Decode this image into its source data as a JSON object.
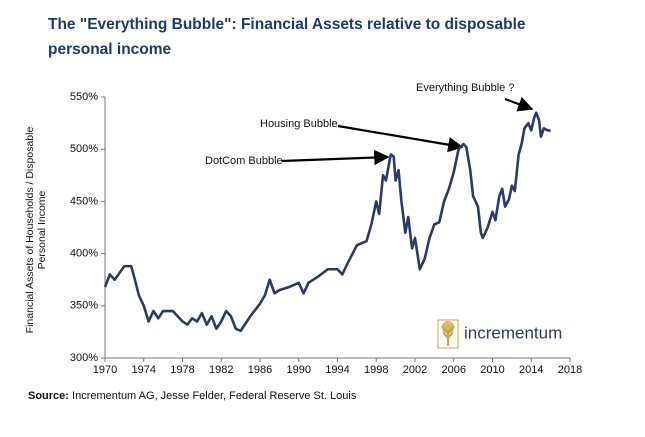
{
  "chart_data": {
    "type": "line",
    "title": "The \"Everything Bubble\": Financial Assets relative to disposable personal income",
    "y_label": "Financial Assets of Households / Disposable Personal Income",
    "source_label": "Source:",
    "source": "Incrementum AG, Jesse Felder, Federal Reserve St. Louis",
    "logo_text": "incrementum",
    "annotations": [
      "DotCom Bubble",
      "Housing Bubble",
      "Everything Bubble ?"
    ],
    "color": "#2b3a66",
    "x": [
      1970,
      1970.5,
      1971,
      1972,
      1972.7,
      1973,
      1973.5,
      1974,
      1974.5,
      1975,
      1975.5,
      1976,
      1977,
      1977.5,
      1978,
      1978.5,
      1979,
      1979.5,
      1980,
      1980.5,
      1981,
      1981.5,
      1982,
      1982.5,
      1983,
      1983.5,
      1984,
      1985,
      1986,
      1986.5,
      1987,
      1987.5,
      1988,
      1989,
      1990,
      1990.5,
      1991,
      1992,
      1993,
      1994,
      1994.5,
      1995,
      1996,
      1997,
      1997.5,
      1998,
      1998.3,
      1998.7,
      1999,
      1999.5,
      1999.8,
      2000,
      2000.3,
      2000.6,
      2001,
      2001.3,
      2001.7,
      2002,
      2002.5,
      2003,
      2003.5,
      2004,
      2004.5,
      2005,
      2005.5,
      2006,
      2006.5,
      2007,
      2007.3,
      2007.7,
      2008,
      2008.5,
      2008.8,
      2009,
      2009.5,
      2010,
      2010.3,
      2010.7,
      2011,
      2011.3,
      2011.7,
      2012,
      2012.3,
      2012.7,
      2013,
      2013.3,
      2013.7,
      2014,
      2014.3,
      2014.5,
      2014.8,
      2015,
      2015.3,
      2015.7,
      2016
    ],
    "values": [
      368,
      380,
      375,
      388,
      388,
      378,
      360,
      350,
      335,
      345,
      338,
      345,
      345,
      340,
      335,
      332,
      338,
      335,
      343,
      332,
      340,
      328,
      335,
      345,
      340,
      328,
      326,
      340,
      352,
      360,
      375,
      362,
      365,
      368,
      372,
      362,
      372,
      378,
      385,
      385,
      380,
      390,
      408,
      412,
      428,
      450,
      438,
      475,
      470,
      495,
      493,
      470,
      480,
      450,
      420,
      435,
      405,
      415,
      385,
      395,
      415,
      428,
      430,
      450,
      462,
      478,
      500,
      505,
      502,
      480,
      455,
      445,
      420,
      415,
      425,
      440,
      432,
      455,
      462,
      445,
      452,
      465,
      460,
      495,
      505,
      520,
      525,
      518,
      530,
      535,
      528,
      512,
      520,
      518,
      518
    ],
    "xlim": [
      1970,
      2018
    ],
    "xticks": [
      1970,
      1974,
      1978,
      1982,
      1986,
      1990,
      1994,
      1998,
      2002,
      2006,
      2010,
      2014,
      2018
    ],
    "ylim": [
      300,
      550
    ],
    "yticks": [
      {
        "value": 300,
        "label": "300%"
      },
      {
        "value": 350,
        "label": "350%"
      },
      {
        "value": 400,
        "label": "400%"
      },
      {
        "value": 450,
        "label": "450%"
      },
      {
        "value": 500,
        "label": "500%"
      },
      {
        "value": 550,
        "label": "550%"
      }
    ],
    "grid": false
  }
}
